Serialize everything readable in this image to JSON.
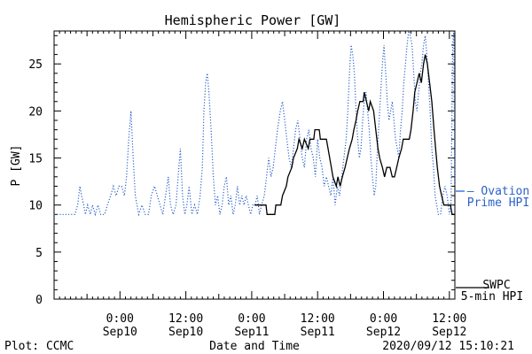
{
  "chart_data": {
    "type": "line",
    "title": "Hemispheric Power [GW]",
    "xlabel": "Date and Time",
    "ylabel": "P [GW]",
    "x_unit": "hours since 2020-09-09 12:00 UT",
    "xlim": [
      0,
      73
    ],
    "ylim": [
      0,
      28.5
    ],
    "y_ticks": [
      0,
      5,
      10,
      15,
      20,
      25
    ],
    "x_ticks": [
      {
        "x": 12,
        "time": "0:00",
        "date": "Sep10"
      },
      {
        "x": 24,
        "time": "12:00",
        "date": "Sep10"
      },
      {
        "x": 36,
        "time": "0:00",
        "date": "Sep11"
      },
      {
        "x": 48,
        "time": "12:00",
        "date": "Sep11"
      },
      {
        "x": 60,
        "time": "0:00",
        "date": "Sep12"
      },
      {
        "x": 72,
        "time": "12:00",
        "date": "Sep12"
      }
    ],
    "series": [
      {
        "name_lines": [
          "SWPC",
          "5-min HPI"
        ],
        "style": "solid",
        "color": "#000000",
        "points": [
          [
            36.5,
            10
          ],
          [
            38.6,
            10
          ],
          [
            38.8,
            9
          ],
          [
            40.2,
            9
          ],
          [
            40.4,
            10
          ],
          [
            41.3,
            10
          ],
          [
            41.6,
            11
          ],
          [
            42.3,
            12
          ],
          [
            42.6,
            13
          ],
          [
            43.3,
            14
          ],
          [
            43.6,
            15
          ],
          [
            44.3,
            16
          ],
          [
            44.6,
            17
          ],
          [
            45.2,
            16
          ],
          [
            45.6,
            17
          ],
          [
            46.3,
            16
          ],
          [
            46.6,
            17
          ],
          [
            47.3,
            17
          ],
          [
            47.5,
            18
          ],
          [
            48.3,
            18
          ],
          [
            48.5,
            17
          ],
          [
            49.6,
            17
          ],
          [
            49.9,
            16
          ],
          [
            50.5,
            14
          ],
          [
            50.8,
            13
          ],
          [
            51.4,
            12
          ],
          [
            51.7,
            13
          ],
          [
            52.1,
            12
          ],
          [
            52.5,
            13
          ],
          [
            53.0,
            14
          ],
          [
            53.4,
            15
          ],
          [
            53.8,
            16
          ],
          [
            54.3,
            17
          ],
          [
            54.6,
            18
          ],
          [
            55.0,
            19
          ],
          [
            55.3,
            20
          ],
          [
            55.7,
            21
          ],
          [
            56.3,
            21
          ],
          [
            56.5,
            22
          ],
          [
            56.9,
            21
          ],
          [
            57.3,
            20
          ],
          [
            57.6,
            21
          ],
          [
            58.2,
            20
          ],
          [
            58.6,
            18
          ],
          [
            59.0,
            16
          ],
          [
            59.3,
            15
          ],
          [
            59.8,
            14
          ],
          [
            60.2,
            13
          ],
          [
            60.6,
            14
          ],
          [
            61.2,
            14
          ],
          [
            61.6,
            13
          ],
          [
            62.0,
            13
          ],
          [
            62.4,
            14
          ],
          [
            62.8,
            15
          ],
          [
            63.3,
            16
          ],
          [
            63.6,
            17
          ],
          [
            64.7,
            17
          ],
          [
            65.0,
            18
          ],
          [
            65.4,
            20
          ],
          [
            65.7,
            22
          ],
          [
            66.1,
            23
          ],
          [
            66.5,
            24
          ],
          [
            66.9,
            23
          ],
          [
            67.3,
            25
          ],
          [
            67.6,
            26
          ],
          [
            68.0,
            25
          ],
          [
            68.4,
            23
          ],
          [
            68.8,
            21
          ],
          [
            69.2,
            18
          ],
          [
            69.5,
            16
          ],
          [
            69.8,
            14
          ],
          [
            70.2,
            12
          ],
          [
            70.6,
            11
          ],
          [
            71.0,
            10
          ],
          [
            72.2,
            10
          ],
          [
            72.5,
            9
          ],
          [
            73.0,
            9
          ]
        ]
      },
      {
        "name_lines": [
          "Ovation",
          "Prime HPI"
        ],
        "style": "dotted",
        "color": "#2b62c8",
        "points": [
          [
            0,
            9
          ],
          [
            3.8,
            9
          ],
          [
            4.3,
            10
          ],
          [
            4.7,
            12
          ],
          [
            5.0,
            11
          ],
          [
            5.4,
            10
          ],
          [
            5.7,
            9
          ],
          [
            6.1,
            10
          ],
          [
            6.6,
            9
          ],
          [
            7.0,
            10
          ],
          [
            7.5,
            9
          ],
          [
            8.0,
            10
          ],
          [
            8.5,
            9
          ],
          [
            9.2,
            9
          ],
          [
            9.7,
            10
          ],
          [
            10.3,
            11
          ],
          [
            10.8,
            12
          ],
          [
            11.3,
            11
          ],
          [
            11.8,
            12
          ],
          [
            12.3,
            12
          ],
          [
            12.8,
            11
          ],
          [
            13.2,
            13
          ],
          [
            13.6,
            17
          ],
          [
            14.0,
            20
          ],
          [
            14.4,
            15
          ],
          [
            14.8,
            11
          ],
          [
            15.4,
            9
          ],
          [
            16.0,
            10
          ],
          [
            16.6,
            9
          ],
          [
            17.2,
            9
          ],
          [
            17.7,
            11
          ],
          [
            18.3,
            12
          ],
          [
            18.8,
            11
          ],
          [
            19.3,
            10
          ],
          [
            19.8,
            9
          ],
          [
            20.3,
            11
          ],
          [
            20.8,
            13
          ],
          [
            21.2,
            10
          ],
          [
            21.7,
            9
          ],
          [
            22.2,
            10
          ],
          [
            22.6,
            13
          ],
          [
            23.0,
            16
          ],
          [
            23.4,
            11
          ],
          [
            23.8,
            9
          ],
          [
            24.2,
            10
          ],
          [
            24.6,
            12
          ],
          [
            25.1,
            9
          ],
          [
            25.6,
            10
          ],
          [
            26.1,
            9
          ],
          [
            26.6,
            11
          ],
          [
            27.0,
            14
          ],
          [
            27.3,
            20
          ],
          [
            27.6,
            23
          ],
          [
            27.9,
            24
          ],
          [
            28.2,
            22
          ],
          [
            28.6,
            18
          ],
          [
            29.0,
            13
          ],
          [
            29.4,
            10
          ],
          [
            29.8,
            11
          ],
          [
            30.2,
            9
          ],
          [
            30.6,
            10
          ],
          [
            31.0,
            12
          ],
          [
            31.4,
            13
          ],
          [
            31.8,
            10
          ],
          [
            32.2,
            11
          ],
          [
            32.6,
            9
          ],
          [
            33.0,
            10
          ],
          [
            33.4,
            12
          ],
          [
            33.8,
            10
          ],
          [
            34.2,
            11
          ],
          [
            34.6,
            10
          ],
          [
            35.0,
            11
          ],
          [
            35.4,
            10
          ],
          [
            35.8,
            9
          ],
          [
            36.2,
            10
          ],
          [
            36.6,
            10
          ],
          [
            37.0,
            11
          ],
          [
            37.4,
            9
          ],
          [
            37.8,
            10
          ],
          [
            38.3,
            11
          ],
          [
            38.7,
            13
          ],
          [
            39.1,
            15
          ],
          [
            39.5,
            13
          ],
          [
            39.9,
            14
          ],
          [
            40.3,
            16
          ],
          [
            40.7,
            18
          ],
          [
            41.2,
            20
          ],
          [
            41.6,
            21
          ],
          [
            42.0,
            19
          ],
          [
            42.4,
            17
          ],
          [
            42.8,
            15
          ],
          [
            43.2,
            14
          ],
          [
            43.6,
            16
          ],
          [
            44.0,
            18
          ],
          [
            44.4,
            19
          ],
          [
            44.8,
            17
          ],
          [
            45.2,
            15
          ],
          [
            45.6,
            14
          ],
          [
            46.0,
            17
          ],
          [
            46.4,
            18
          ],
          [
            46.8,
            16
          ],
          [
            47.2,
            15
          ],
          [
            47.6,
            13
          ],
          [
            48.0,
            17
          ],
          [
            48.4,
            15
          ],
          [
            48.8,
            14
          ],
          [
            49.2,
            12
          ],
          [
            49.6,
            13
          ],
          [
            50.0,
            12
          ],
          [
            50.4,
            11
          ],
          [
            50.8,
            13
          ],
          [
            51.2,
            10
          ],
          [
            51.6,
            12
          ],
          [
            52.0,
            11
          ],
          [
            52.4,
            13
          ],
          [
            52.8,
            15
          ],
          [
            53.2,
            17
          ],
          [
            53.5,
            20
          ],
          [
            53.8,
            24
          ],
          [
            54.1,
            27
          ],
          [
            54.4,
            26
          ],
          [
            54.7,
            24
          ],
          [
            55.0,
            20
          ],
          [
            55.3,
            17
          ],
          [
            55.6,
            15
          ],
          [
            55.9,
            16
          ],
          [
            56.2,
            19
          ],
          [
            56.5,
            21
          ],
          [
            56.8,
            22
          ],
          [
            57.1,
            20
          ],
          [
            57.4,
            18
          ],
          [
            57.7,
            15
          ],
          [
            58.0,
            13
          ],
          [
            58.3,
            11
          ],
          [
            58.6,
            12
          ],
          [
            58.9,
            16
          ],
          [
            59.2,
            19
          ],
          [
            59.5,
            22
          ],
          [
            59.8,
            25
          ],
          [
            60.1,
            27
          ],
          [
            60.4,
            24
          ],
          [
            60.7,
            21
          ],
          [
            61.0,
            19
          ],
          [
            61.3,
            20
          ],
          [
            61.6,
            21
          ],
          [
            61.9,
            19
          ],
          [
            62.2,
            17
          ],
          [
            62.5,
            16
          ],
          [
            62.8,
            15
          ],
          [
            63.1,
            18
          ],
          [
            63.4,
            20
          ],
          [
            63.7,
            23
          ],
          [
            64.0,
            25
          ],
          [
            64.3,
            27
          ],
          [
            64.6,
            28.5
          ],
          [
            64.9,
            28
          ],
          [
            65.2,
            27
          ],
          [
            65.5,
            24
          ],
          [
            65.8,
            21
          ],
          [
            66.1,
            20
          ],
          [
            66.4,
            22
          ],
          [
            66.7,
            24
          ],
          [
            67.0,
            25
          ],
          [
            67.3,
            27
          ],
          [
            67.6,
            28
          ],
          [
            67.9,
            26
          ],
          [
            68.2,
            23
          ],
          [
            68.5,
            20
          ],
          [
            68.8,
            16
          ],
          [
            69.1,
            14
          ],
          [
            69.4,
            11
          ],
          [
            69.7,
            10
          ],
          [
            70.0,
            9
          ],
          [
            70.4,
            9
          ],
          [
            70.8,
            11
          ],
          [
            71.2,
            12
          ],
          [
            71.6,
            11
          ],
          [
            72.0,
            9
          ],
          [
            72.3,
            10
          ],
          [
            72.6,
            27
          ],
          [
            72.8,
            28.5
          ],
          [
            73.0,
            12
          ]
        ]
      }
    ],
    "legend_placement": "right"
  },
  "footer": {
    "plot_credit": "Plot: CCMC",
    "timestamp": "2020/09/12 15:10:21"
  }
}
